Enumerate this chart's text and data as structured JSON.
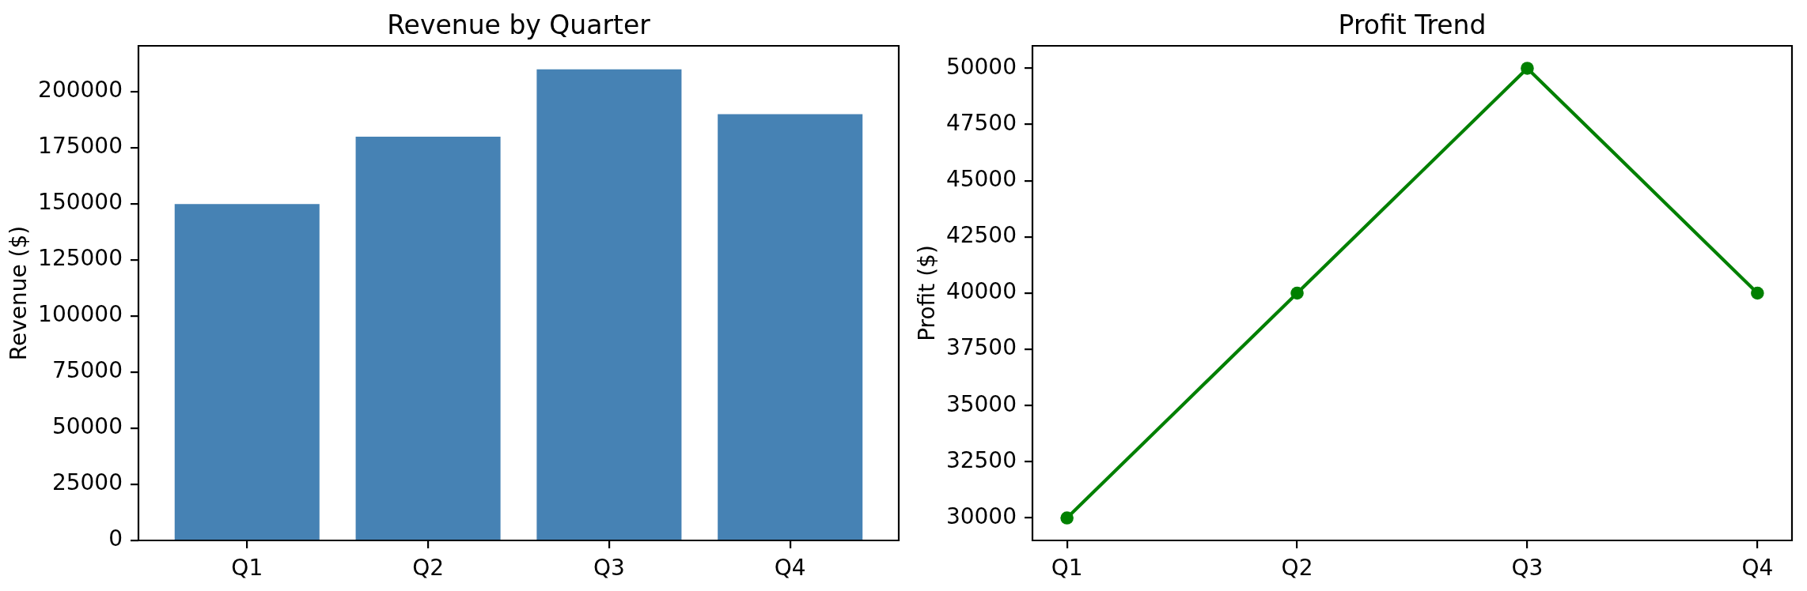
{
  "chart_data": [
    {
      "type": "bar",
      "title": "Revenue by Quarter",
      "ylabel": "Revenue ($)",
      "categories": [
        "Q1",
        "Q2",
        "Q3",
        "Q4"
      ],
      "values": [
        150000,
        180000,
        210000,
        190000
      ],
      "color": "#4682b4",
      "ylim": [
        0,
        220500
      ],
      "yticks": [
        0,
        25000,
        50000,
        75000,
        100000,
        125000,
        150000,
        175000,
        200000
      ]
    },
    {
      "type": "line",
      "title": "Profit Trend",
      "ylabel": "Profit ($)",
      "categories": [
        "Q1",
        "Q2",
        "Q3",
        "Q4"
      ],
      "values": [
        30000,
        40000,
        50000,
        40000
      ],
      "color": "#008000",
      "marker": "circle",
      "line_style": "solid",
      "ylim": [
        29000,
        51000
      ],
      "yticks": [
        30000,
        32500,
        35000,
        37500,
        40000,
        42500,
        45000,
        47500,
        50000
      ]
    }
  ]
}
